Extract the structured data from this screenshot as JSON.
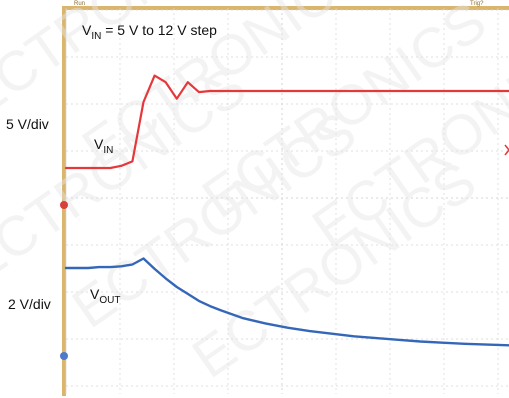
{
  "colors": {
    "vin": "#e5383b",
    "vout": "#3567b8",
    "grid": "#d5d5d5",
    "plot_bg": "#ffffff",
    "left_rail": "#d9b56e",
    "top_rail": "#d9b56e",
    "watermark": "#e6e6e6",
    "marker_red": "#d9403b",
    "marker_blue": "#4d7acb"
  },
  "labels": {
    "vin_scale": "5 V/div",
    "vout_scale": "2 V/div",
    "title_main": "V",
    "title_sub": "IN",
    "title_rest": " = 5 V to 12 V step",
    "vin_label_main": "V",
    "vin_label_sub": "IN",
    "vout_label_main": "V",
    "vout_label_sub": "OUT",
    "top_run": "Run",
    "top_trig": "Trig?",
    "watermark_text": "ECTRONICS"
  },
  "chart_data": {
    "type": "line",
    "title": "VIN = 5 V to 12 V step",
    "grid": true,
    "series": [
      {
        "name": "VIN",
        "x": [
          0,
          5,
          10,
          15,
          20,
          25,
          30,
          35,
          40,
          45,
          50,
          55,
          60,
          65,
          70,
          75,
          80,
          90,
          100,
          110,
          120,
          130,
          140,
          150,
          160,
          170,
          180,
          190,
          200
        ],
        "y": [
          5,
          5,
          5,
          5,
          5,
          5.2,
          5.6,
          11,
          13.4,
          12.8,
          11.3,
          12.8,
          11.9,
          12.0,
          12.0,
          12.0,
          12.0,
          12.0,
          12.0,
          12.0,
          12.0,
          12.0,
          12.0,
          12.0,
          12.0,
          12.0,
          12.0,
          12.0,
          12.0
        ]
      },
      {
        "name": "VOUT",
        "x": [
          0,
          5,
          10,
          15,
          20,
          25,
          30,
          35,
          40,
          45,
          50,
          55,
          60,
          65,
          70,
          80,
          90,
          100,
          110,
          120,
          130,
          140,
          150,
          160,
          170,
          180,
          190,
          200
        ],
        "y": [
          4.9,
          4.9,
          4.9,
          4.95,
          4.95,
          5.0,
          5.1,
          5.45,
          4.85,
          4.3,
          3.8,
          3.4,
          3.0,
          2.7,
          2.45,
          2.0,
          1.7,
          1.45,
          1.25,
          1.1,
          0.95,
          0.85,
          0.75,
          0.65,
          0.58,
          0.52,
          0.47,
          0.43
        ]
      }
    ]
  }
}
